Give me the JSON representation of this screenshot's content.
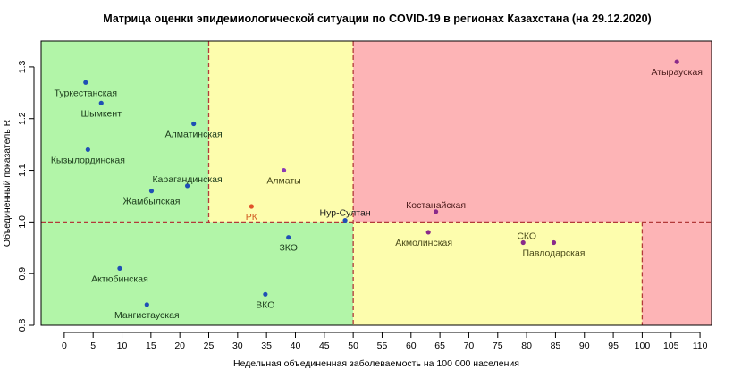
{
  "chart_data": {
    "type": "scatter",
    "title": "Матрица оценки эпидемиологической ситуации по COVID-19 в регионах Казахстана (на 29.12.2020)",
    "xlabel": "Недельная объединенная заболеваемость на 100 000 населения",
    "ylabel": "Объединенный показатель R",
    "xlim": [
      -4,
      112
    ],
    "ylim": [
      0.8,
      1.35
    ],
    "x_ticks": [
      0,
      5,
      10,
      15,
      20,
      25,
      30,
      35,
      40,
      45,
      50,
      55,
      60,
      65,
      70,
      75,
      80,
      85,
      90,
      95,
      100,
      105,
      110
    ],
    "y_ticks": [
      0.8,
      0.9,
      1.0,
      1.1,
      1.2,
      1.3
    ],
    "grid": false,
    "zones": [
      {
        "name": "green-top",
        "x": [
          -4,
          25
        ],
        "y": [
          1.0,
          1.35
        ],
        "color": "#b2f5a8"
      },
      {
        "name": "yellow-top",
        "x": [
          25,
          50
        ],
        "y": [
          1.0,
          1.35
        ],
        "color": "#fdfdad"
      },
      {
        "name": "red-top",
        "x": [
          50,
          112
        ],
        "y": [
          1.0,
          1.35
        ],
        "color": "#fdb4b6"
      },
      {
        "name": "green-bottom",
        "x": [
          -4,
          50
        ],
        "y": [
          0.8,
          1.0
        ],
        "color": "#b2f5a8"
      },
      {
        "name": "yellow-bottom",
        "x": [
          50,
          100
        ],
        "y": [
          0.8,
          1.0
        ],
        "color": "#fdfdad"
      },
      {
        "name": "red-bottom",
        "x": [
          100,
          112
        ],
        "y": [
          0.8,
          1.0
        ],
        "color": "#fdb4b6"
      }
    ],
    "threshold_color": "#b33a3a",
    "points": [
      {
        "label": "Туркестанская",
        "x": 3.7,
        "y": 1.27,
        "color": "#1f4fb5",
        "label_color": "#1a3a1a"
      },
      {
        "label": "Шымкент",
        "x": 6.4,
        "y": 1.23,
        "color": "#1f4fb5",
        "label_color": "#1a3a1a"
      },
      {
        "label": "Алматинская",
        "x": 22.4,
        "y": 1.19,
        "color": "#1f4fb5",
        "label_color": "#1a3a1a"
      },
      {
        "label": "Кызылординская",
        "x": 4.1,
        "y": 1.14,
        "color": "#1f4fb5",
        "label_color": "#1a3a1a"
      },
      {
        "label": "Алматы",
        "x": 38.0,
        "y": 1.1,
        "color": "#8a3ab5",
        "label_color": "#4a4a1a"
      },
      {
        "label": "Карагандинская",
        "x": 21.3,
        "y": 1.07,
        "color": "#1f4fb5",
        "label_color": "#1a3a1a"
      },
      {
        "label": "Жамбылская",
        "x": 15.1,
        "y": 1.06,
        "color": "#1f4fb5",
        "label_color": "#1a3a1a"
      },
      {
        "label": "РК",
        "x": 32.4,
        "y": 1.03,
        "color": "#e0532a",
        "label_color": "#d0581f"
      },
      {
        "label": "Костанайская",
        "x": 64.3,
        "y": 1.02,
        "color": "#8a2a8a",
        "label_color": "#4a1a1a"
      },
      {
        "label": "Нур-Султан",
        "x": 48.6,
        "y": 1.003,
        "color": "#1f4fb5",
        "label_color": "#1a1a1a"
      },
      {
        "label": "Акмолинская",
        "x": 63.0,
        "y": 0.98,
        "color": "#8a2a8a",
        "label_color": "#4a4a1a"
      },
      {
        "label": "ЗКО",
        "x": 38.8,
        "y": 0.97,
        "color": "#1f4fb5",
        "label_color": "#1a3a1a"
      },
      {
        "label": "СКО",
        "x": 79.4,
        "y": 0.96,
        "color": "#8a2a8a",
        "label_color": "#4a4a1a"
      },
      {
        "label": "Павлодарская",
        "x": 84.7,
        "y": 0.96,
        "color": "#8a2a8a",
        "label_color": "#4a4a1a"
      },
      {
        "label": "Актюбинская",
        "x": 9.6,
        "y": 0.91,
        "color": "#1f4fb5",
        "label_color": "#1a3a1a"
      },
      {
        "label": "ВКО",
        "x": 34.8,
        "y": 0.86,
        "color": "#1f4fb5",
        "label_color": "#1a3a1a"
      },
      {
        "label": "Мангистауская",
        "x": 14.3,
        "y": 0.84,
        "color": "#1f4fb5",
        "label_color": "#1a3a1a"
      },
      {
        "label": "Атырауская",
        "x": 106.0,
        "y": 1.31,
        "color": "#8a2a8a",
        "label_color": "#4a1a1a"
      }
    ]
  }
}
